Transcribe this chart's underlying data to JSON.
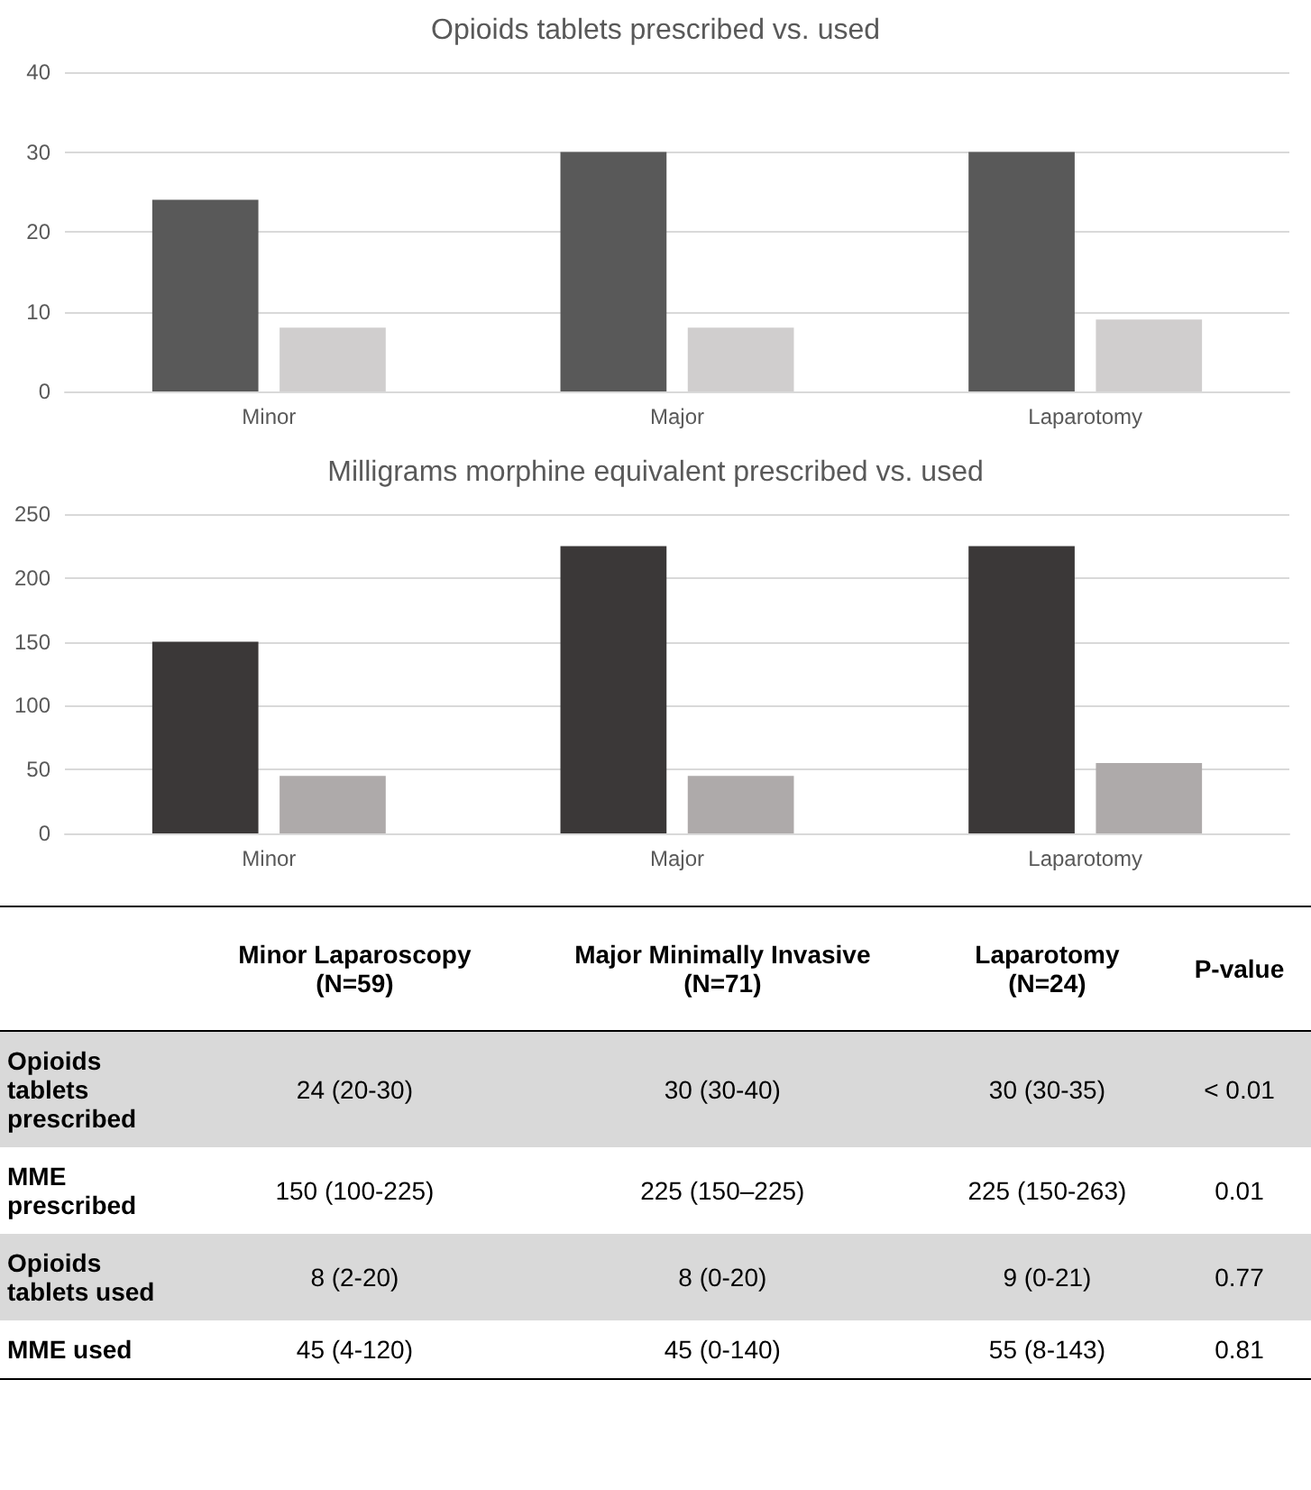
{
  "chart_data": [
    {
      "type": "bar",
      "title": "Opioids tablets prescribed vs. used",
      "categories": [
        "Minor",
        "Major",
        "Laparotomy"
      ],
      "series": [
        {
          "color": "#595959",
          "values": [
            24,
            30,
            30
          ]
        },
        {
          "color": "#d0cece",
          "values": [
            8,
            8,
            9
          ]
        }
      ],
      "ylim": [
        0,
        40
      ],
      "yticks": [
        0,
        10,
        20,
        30,
        40
      ],
      "grid": "y"
    },
    {
      "type": "bar",
      "title": "Milligrams morphine equivalent prescribed vs. used",
      "categories": [
        "Minor",
        "Major",
        "Laparotomy"
      ],
      "series": [
        {
          "color": "#3b3838",
          "values": [
            150,
            225,
            225
          ]
        },
        {
          "color": "#aeaaaa",
          "values": [
            45,
            45,
            55
          ]
        }
      ],
      "ylim": [
        0,
        250
      ],
      "yticks": [
        0,
        50,
        100,
        150,
        200,
        250
      ],
      "grid": "y"
    },
    {
      "type": "other",
      "categories": [
        "Minor Laparoscopy\n(N=59)",
        "Major Minimally Invasive\n(N=71)",
        "Laparotomy\n(N=24)",
        "P-value"
      ],
      "y_categories": [
        "Opioids tablets prescribed",
        "MME prescribed",
        "Opioids tablets used",
        "MME used"
      ],
      "cell_labels": [
        [
          "24 (20-30)",
          "30 (30-40)",
          "30 (30-35)",
          "< 0.01"
        ],
        [
          "150 (100-225)",
          "225 (150–225)",
          "225 (150-263)",
          "0.01"
        ],
        [
          "8 (2-20)",
          "8 (0-20)",
          "9 (0-21)",
          "0.77"
        ],
        [
          "45 (4-120)",
          "45 (0-140)",
          "55 (8-143)",
          "0.81"
        ]
      ]
    }
  ]
}
